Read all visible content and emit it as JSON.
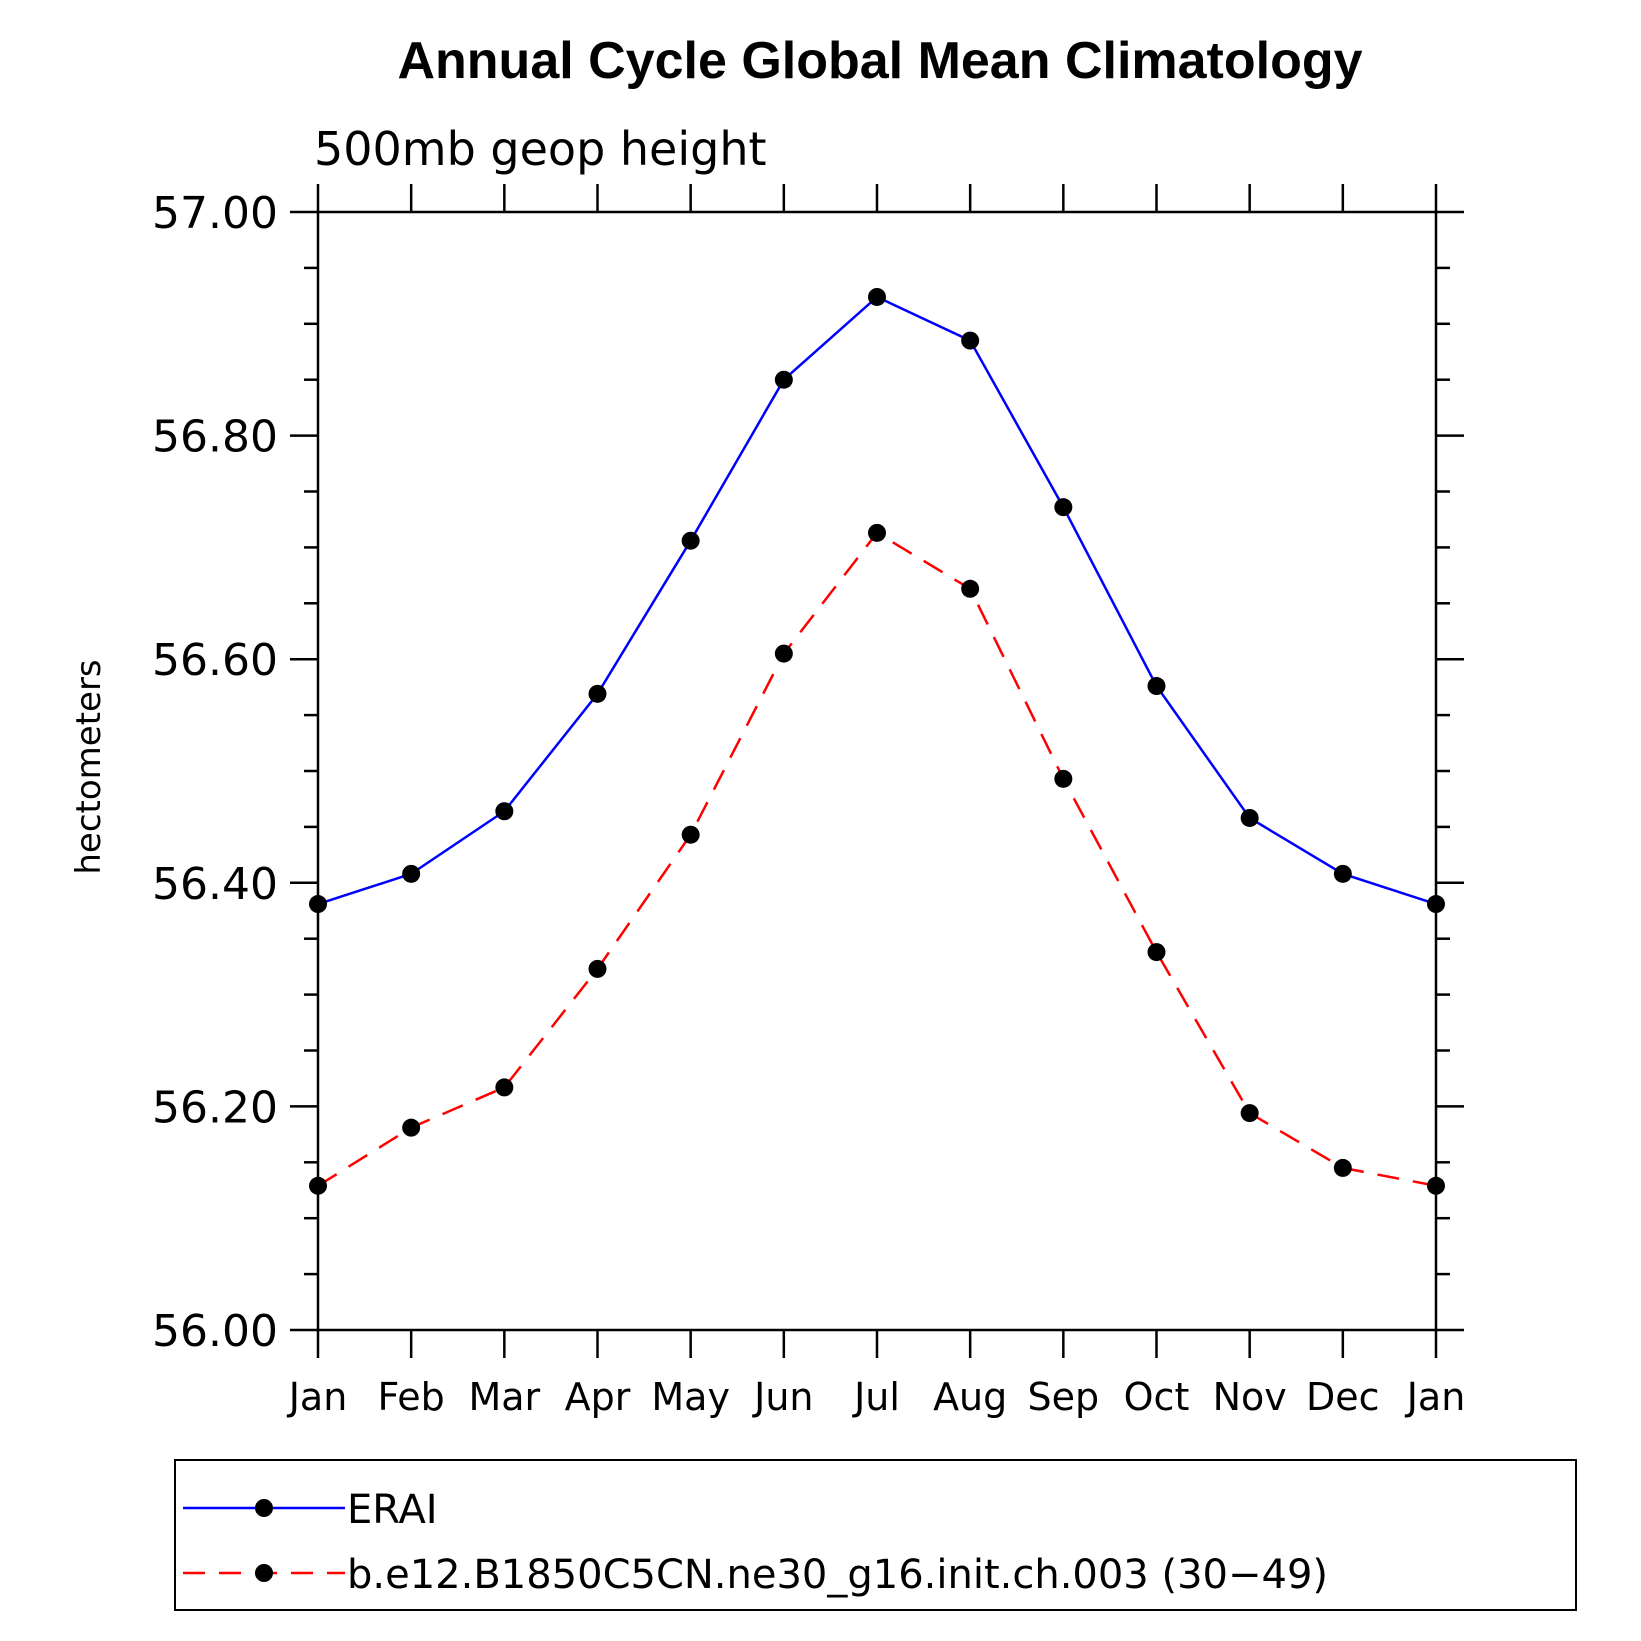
{
  "chart_data": {
    "type": "line",
    "title": "Annual Cycle Global Mean Climatology",
    "subtitle": "500mb geop height",
    "ylabel": "hectometers",
    "xlabel": "",
    "categories": [
      "Jan",
      "Feb",
      "Mar",
      "Apr",
      "May",
      "Jun",
      "Jul",
      "Aug",
      "Sep",
      "Oct",
      "Nov",
      "Dec",
      "Jan"
    ],
    "ylim": [
      56.0,
      57.0
    ],
    "yticks": [
      "56.00",
      "56.20",
      "56.40",
      "56.60",
      "56.80",
      "57.00"
    ],
    "grid": false,
    "legend_position": "bottom",
    "series": [
      {
        "name": "ERAI",
        "color": "#0000ff",
        "line_style": "solid",
        "marker": "filled-circle",
        "values": [
          56.381,
          56.408,
          56.464,
          56.569,
          56.706,
          56.85,
          56.924,
          56.885,
          56.736,
          56.576,
          56.458,
          56.408,
          56.381
        ]
      },
      {
        "name": "b.e12.B1850C5CN.ne30_g16.init.ch.003 (30−49)",
        "color": "#ff0000",
        "line_style": "dashed",
        "marker": "filled-circle",
        "values": [
          56.129,
          56.181,
          56.217,
          56.323,
          56.443,
          56.605,
          56.713,
          56.663,
          56.493,
          56.338,
          56.194,
          56.145,
          56.129
        ]
      }
    ]
  }
}
